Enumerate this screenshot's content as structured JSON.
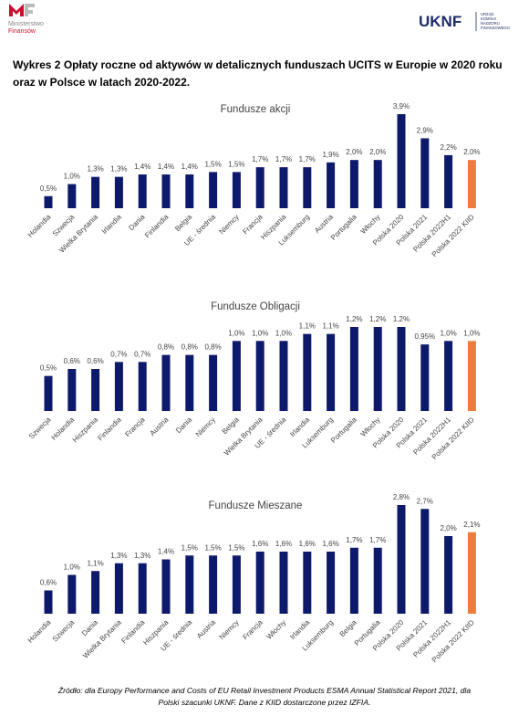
{
  "header": {
    "ministry_line1": "Ministerstwo",
    "ministry_line2": "Finansów",
    "uknf": "UKNF",
    "uknf_sub": [
      "URZĄD",
      "KOMISJI",
      "NADZORU",
      "FINANSOWEGO"
    ]
  },
  "title": "Wykres 2 Opłaty roczne od aktywów w detalicznych funduszach UCITS w Europie w 2020 roku oraz w Polsce w latach 2020-2022.",
  "chart_data": [
    {
      "type": "bar",
      "title": "Fundusze akcji",
      "categories": [
        "Holandia",
        "Szwecja",
        "Wielka Brytania",
        "Irlandia",
        "Dania",
        "Finlandia",
        "Belgia",
        "UE - średnia",
        "Niemcy",
        "Francja",
        "Hiszpania",
        "Luksemburg",
        "Austria",
        "Portugalia",
        "Włochy",
        "Polska 2020",
        "Polska 2021",
        "Polska 2022H1",
        "Polska 2022 KIID"
      ],
      "values": [
        0.5,
        1.0,
        1.3,
        1.3,
        1.4,
        1.4,
        1.4,
        1.5,
        1.5,
        1.7,
        1.7,
        1.7,
        1.9,
        2.0,
        2.0,
        3.9,
        2.9,
        2.2,
        2.0
      ],
      "value_labels": [
        "0,5%",
        "1,0%",
        "1,3%",
        "1,3%",
        "1,4%",
        "1,4%",
        "1,4%",
        "1,5%",
        "1,5%",
        "1,7%",
        "1,7%",
        "1,7%",
        "1,9%",
        "2,0%",
        "2,0%",
        "3,9%",
        "2,9%",
        "2,2%",
        "2,0%"
      ],
      "colors": [
        "#0d1a6b",
        "#0d1a6b",
        "#0d1a6b",
        "#0d1a6b",
        "#0d1a6b",
        "#0d1a6b",
        "#0d1a6b",
        "#0d1a6b",
        "#0d1a6b",
        "#0d1a6b",
        "#0d1a6b",
        "#0d1a6b",
        "#0d1a6b",
        "#0d1a6b",
        "#0d1a6b",
        "#0d1a6b",
        "#0d1a6b",
        "#0d1a6b",
        "#ee7d3b"
      ]
    },
    {
      "type": "bar",
      "title": "Fundusze Obligacji",
      "categories": [
        "Szwecja",
        "Holandia",
        "Hiszpania",
        "Finlandia",
        "Francja",
        "Austria",
        "Dania",
        "Niemcy",
        "Belgia",
        "Wielka Brytania",
        "UE - średnia",
        "Irlandia",
        "Luksemburg",
        "Portugalia",
        "Włochy",
        "Polska 2020",
        "Polska 2021",
        "Polska 2022H1",
        "Polska 2022 KIID"
      ],
      "values": [
        0.5,
        0.6,
        0.6,
        0.7,
        0.7,
        0.8,
        0.8,
        0.8,
        1.0,
        1.0,
        1.0,
        1.1,
        1.1,
        1.2,
        1.2,
        1.2,
        0.95,
        1.0,
        1.0
      ],
      "value_labels": [
        "0,5%",
        "0,6%",
        "0,6%",
        "0,7%",
        "0,7%",
        "0,8%",
        "0,8%",
        "0,8%",
        "1,0%",
        "1,0%",
        "1,0%",
        "1,1%",
        "1,1%",
        "1,2%",
        "1,2%",
        "1,2%",
        "0,95%",
        "1,0%",
        "1,0%"
      ],
      "colors": [
        "#0d1a6b",
        "#0d1a6b",
        "#0d1a6b",
        "#0d1a6b",
        "#0d1a6b",
        "#0d1a6b",
        "#0d1a6b",
        "#0d1a6b",
        "#0d1a6b",
        "#0d1a6b",
        "#0d1a6b",
        "#0d1a6b",
        "#0d1a6b",
        "#0d1a6b",
        "#0d1a6b",
        "#0d1a6b",
        "#0d1a6b",
        "#0d1a6b",
        "#ee7d3b"
      ]
    },
    {
      "type": "bar",
      "title": "Fundusze Mieszane",
      "categories": [
        "Holandia",
        "Szwecja",
        "Dania",
        "Wielka Brytania",
        "Finlandia",
        "Hiszpania",
        "UE - średnia",
        "Austria",
        "Niemcy",
        "Francja",
        "Włochy",
        "Irlandia",
        "Luksemburg",
        "Belgia",
        "Portugalia",
        "Polska 2020",
        "Polska 2021",
        "Polska 2022H1",
        "Polska 2022 KIID"
      ],
      "values": [
        0.6,
        1.0,
        1.1,
        1.3,
        1.3,
        1.4,
        1.5,
        1.5,
        1.5,
        1.6,
        1.6,
        1.6,
        1.6,
        1.7,
        1.7,
        2.8,
        2.7,
        2.0,
        2.1
      ],
      "value_labels": [
        "0,6%",
        "1,0%",
        "1,1%",
        "1,3%",
        "1,3%",
        "1,4%",
        "1,5%",
        "1,5%",
        "1,5%",
        "1,6%",
        "1,6%",
        "1,6%",
        "1,6%",
        "1,7%",
        "1,7%",
        "2,8%",
        "2,7%",
        "2,0%",
        "2,1%"
      ],
      "colors": [
        "#0d1a6b",
        "#0d1a6b",
        "#0d1a6b",
        "#0d1a6b",
        "#0d1a6b",
        "#0d1a6b",
        "#0d1a6b",
        "#0d1a6b",
        "#0d1a6b",
        "#0d1a6b",
        "#0d1a6b",
        "#0d1a6b",
        "#0d1a6b",
        "#0d1a6b",
        "#0d1a6b",
        "#0d1a6b",
        "#0d1a6b",
        "#0d1a6b",
        "#ee7d3b"
      ]
    }
  ],
  "footer": [
    "Źródło: dla Europy Performance and Costs of EU Retail Investment Products ESMA Annual Statistical Report 2021, dla",
    "Polski szacunki UKNF. Dane z KIID dostarczone przez IZFIA."
  ]
}
